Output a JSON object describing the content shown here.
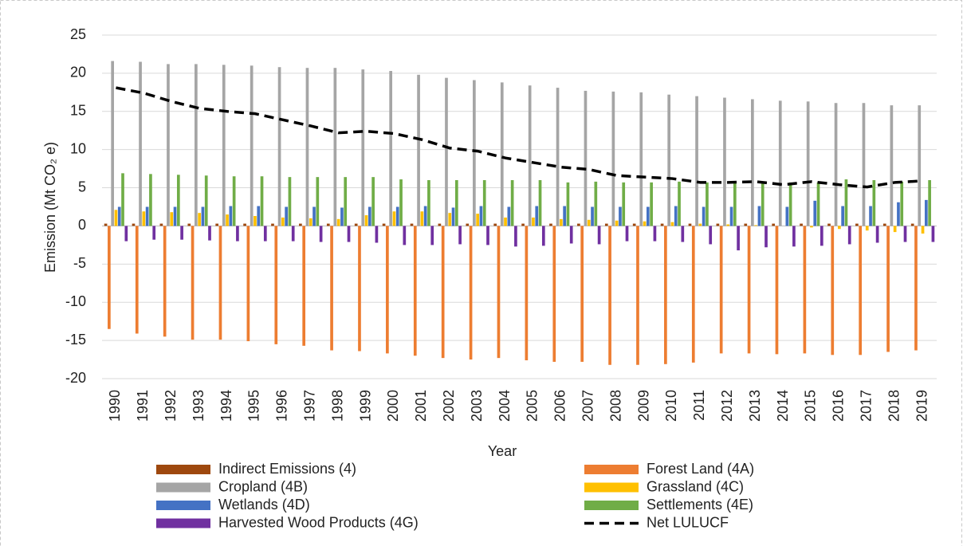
{
  "chart_data": {
    "type": "bar",
    "xlabel": "Year",
    "ylabel": "Emission (Mt CO₂ e)",
    "categories": [
      "1990",
      "1991",
      "1992",
      "1993",
      "1994",
      "1995",
      "1996",
      "1997",
      "1998",
      "1999",
      "2000",
      "2001",
      "2002",
      "2003",
      "2004",
      "2005",
      "2006",
      "2007",
      "2008",
      "2009",
      "2010",
      "2011",
      "2012",
      "2013",
      "2014",
      "2015",
      "2016",
      "2017",
      "2018",
      "2019"
    ],
    "ylim": [
      -20,
      25
    ],
    "yticks": [
      -20,
      -15,
      -10,
      -5,
      0,
      5,
      10,
      15,
      20,
      25
    ],
    "grid": true,
    "legend": "bottom",
    "series": [
      {
        "name": "Indirect Emissions (4)",
        "color": "#9e480e",
        "type": "bar",
        "values": [
          0.3,
          0.3,
          0.3,
          0.3,
          0.3,
          0.3,
          0.3,
          0.3,
          0.3,
          0.3,
          0.3,
          0.3,
          0.3,
          0.3,
          0.3,
          0.3,
          0.3,
          0.3,
          0.3,
          0.3,
          0.3,
          0.3,
          0.3,
          0.3,
          0.3,
          0.3,
          0.3,
          0.3,
          0.3,
          0.3
        ]
      },
      {
        "name": "Forest Land (4A)",
        "color": "#ed7d31",
        "type": "bar",
        "values": [
          -13.5,
          -14.1,
          -14.5,
          -14.9,
          -14.9,
          -15.1,
          -15.5,
          -15.7,
          -16.3,
          -16.4,
          -16.7,
          -17.0,
          -17.3,
          -17.5,
          -17.3,
          -17.6,
          -17.8,
          -17.8,
          -18.2,
          -18.2,
          -18.1,
          -17.9,
          -16.7,
          -16.7,
          -16.8,
          -16.7,
          -16.9,
          -16.9,
          -16.5,
          -16.3
        ]
      },
      {
        "name": "Cropland (4B)",
        "color": "#a5a5a5",
        "type": "bar",
        "values": [
          21.6,
          21.5,
          21.2,
          21.2,
          21.1,
          21.0,
          20.8,
          20.7,
          20.7,
          20.5,
          20.3,
          19.8,
          19.4,
          19.1,
          18.8,
          18.4,
          18.1,
          17.7,
          17.6,
          17.5,
          17.2,
          17.0,
          16.8,
          16.6,
          16.4,
          16.3,
          16.1,
          16.1,
          15.8,
          15.8
        ]
      },
      {
        "name": "Grassland (4C)",
        "color": "#ffc000",
        "type": "bar",
        "values": [
          2.1,
          1.9,
          1.8,
          1.7,
          1.5,
          1.3,
          1.1,
          1.0,
          0.9,
          1.4,
          1.9,
          1.9,
          1.7,
          1.6,
          1.1,
          1.1,
          0.9,
          0.8,
          0.7,
          0.6,
          0.5,
          0.3,
          0.2,
          0.1,
          0,
          -0.2,
          -0.4,
          -0.6,
          -0.8,
          -1.0
        ]
      },
      {
        "name": "Wetlands (4D)",
        "color": "#4472c4",
        "type": "bar",
        "values": [
          2.5,
          2.5,
          2.5,
          2.5,
          2.6,
          2.6,
          2.5,
          2.5,
          2.4,
          2.5,
          2.5,
          2.6,
          2.4,
          2.6,
          2.5,
          2.6,
          2.6,
          2.5,
          2.5,
          2.5,
          2.6,
          2.5,
          2.5,
          2.6,
          2.5,
          3.3,
          2.6,
          2.6,
          3.1,
          3.4
        ]
      },
      {
        "name": "Settlements (4E)",
        "color": "#70ad47",
        "type": "bar",
        "values": [
          6.9,
          6.8,
          6.7,
          6.6,
          6.5,
          6.5,
          6.4,
          6.4,
          6.4,
          6.4,
          6.1,
          6.0,
          6.0,
          6.0,
          6.0,
          6.0,
          5.7,
          5.8,
          5.7,
          5.7,
          5.8,
          5.7,
          5.7,
          5.7,
          5.7,
          5.7,
          6.1,
          6.0,
          5.8,
          6.0
        ]
      },
      {
        "name": "Harvested Wood Products (4G)",
        "color": "#7030a0",
        "type": "bar",
        "values": [
          -2.0,
          -1.8,
          -1.8,
          -1.9,
          -2.0,
          -2.0,
          -2.0,
          -2.1,
          -2.1,
          -2.2,
          -2.5,
          -2.5,
          -2.4,
          -2.5,
          -2.7,
          -2.6,
          -2.3,
          -2.4,
          -2.0,
          -2.0,
          -2.1,
          -2.4,
          -3.2,
          -2.8,
          -2.7,
          -2.6,
          -2.4,
          -2.2,
          -2.1,
          -2.1
        ]
      },
      {
        "name": "Net LULUCF",
        "color": "#000000",
        "type": "line",
        "values": [
          18.1,
          17.4,
          16.3,
          15.4,
          15.0,
          14.7,
          13.9,
          13.1,
          12.2,
          12.4,
          12.1,
          11.3,
          10.2,
          9.8,
          8.9,
          8.3,
          7.7,
          7.4,
          6.6,
          6.4,
          6.2,
          5.7,
          5.7,
          5.8,
          5.4,
          5.8,
          5.4,
          5.1,
          5.7,
          5.9
        ]
      }
    ]
  }
}
